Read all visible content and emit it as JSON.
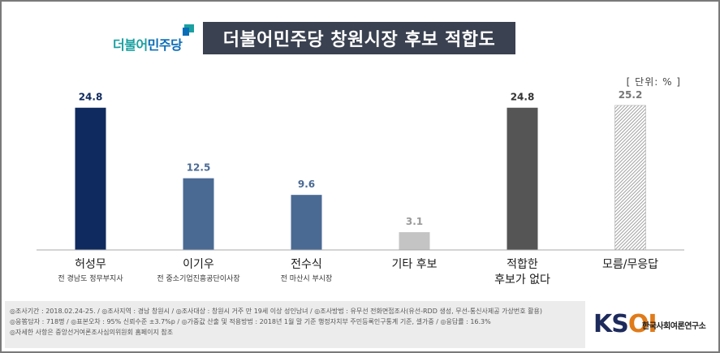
{
  "header": {
    "logo_text_a": "더불어",
    "logo_text_b": "민주당",
    "title": "더불어민주당 창원시장 후보 적합도"
  },
  "unit_label": "[ 단위: % ]",
  "colors": {
    "navy": "#0f2a5e",
    "steel": "#4a6a94",
    "light_gray": "#c4c4c4",
    "dark_gray": "#555555",
    "hatched": "#a0a0a0",
    "title_bg": "#3a4150"
  },
  "chart_data": {
    "type": "bar",
    "categories": [
      "허성무",
      "이기우",
      "전수식",
      "기타 후보",
      "적합한 후보가 없다",
      "모름/무응답"
    ],
    "values": [
      24.8,
      12.5,
      9.6,
      3.1,
      24.8,
      25.2
    ],
    "value_labels": [
      "24.8",
      "12.5",
      "9.6",
      "3.1",
      "24.8",
      "25.2"
    ],
    "category_lines": [
      [
        "허성무"
      ],
      [
        "이기우"
      ],
      [
        "전수식"
      ],
      [
        "기타 후보"
      ],
      [
        "적합한",
        "후보가 없다"
      ],
      [
        "모름/무응답"
      ]
    ],
    "subtitles": [
      "전 경남도 정무부지사",
      "전 중소기업진흥공단이사장",
      "전 마산시 부시장",
      "",
      "",
      ""
    ],
    "bar_styles": [
      "navy",
      "steel",
      "steel",
      "light_gray",
      "dark_gray",
      "hatched"
    ],
    "ylim": [
      0,
      30
    ],
    "unit": "%"
  },
  "footer": {
    "line1": "◎조사기간 : 2018.02.24-25.  / ◎조사지역 : 경남 창원시 / ◎조사대상 : 창원시 거주 만 19세 이상 성인남녀 / ◎조사방법 : 유무선 전화면접조사(유선-RDD 생성, 무선-통신사제공 가상번호 활용)",
    "line2": "◎응答담자 : 718명 / ◎표본오차 : 95%  신뢰수준 ±3.7%p / ◎가중값 산출 및 적용방법 : 2018년 1월 말 기준 행정자치부 주민등록인구통계 기준, 셀가중 / ◎응답률 : 16.3%",
    "line3": "◎자세한 사항은 중앙선거여론조사심의위원회 홈페이지 참조"
  },
  "brand": {
    "word_a": "KS",
    "word_b": "OI",
    "name": "한국사회여론연구소"
  }
}
